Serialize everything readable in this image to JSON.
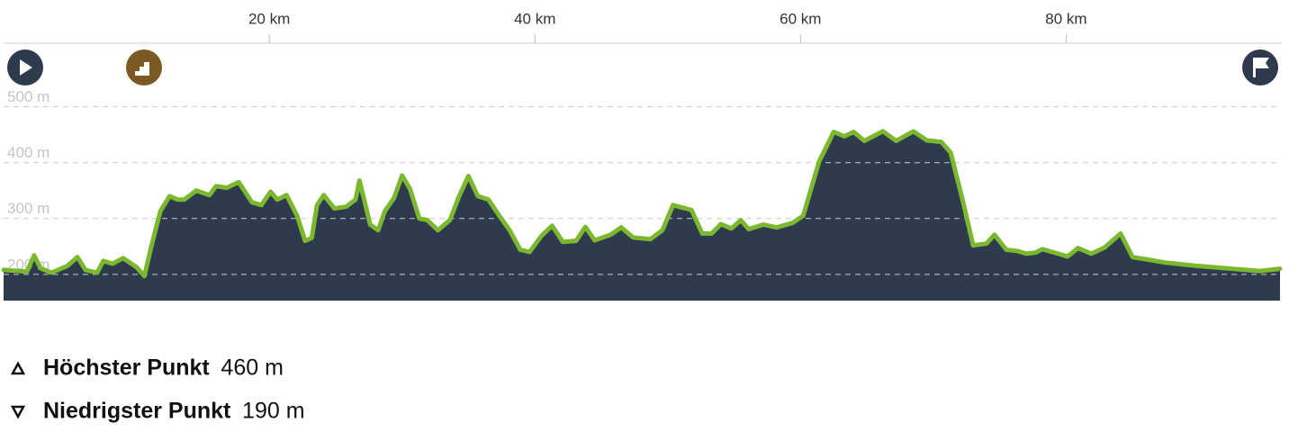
{
  "chart_data": {
    "type": "area",
    "x": [
      0,
      1.76,
      2.3,
      2.78,
      3.6,
      4.8,
      5.56,
      6.17,
      7.05,
      7.5,
      8.2,
      9.0,
      10.0,
      10.6,
      11.1,
      11.8,
      12.5,
      13.1,
      13.6,
      14.5,
      15.5,
      16.0,
      16.8,
      17.7,
      18.7,
      19.4,
      20.1,
      20.6,
      21.3,
      22.1,
      22.7,
      23.2,
      23.6,
      24.1,
      24.9,
      25.8,
      26.5,
      26.8,
      27.6,
      28.2,
      28.7,
      29.4,
      30.0,
      30.6,
      31.3,
      31.9,
      32.7,
      33.6,
      34.3,
      35.0,
      35.7,
      36.5,
      37.4,
      38.1,
      38.9,
      39.6,
      40.5,
      41.3,
      42.1,
      43.1,
      43.8,
      44.5,
      45.7,
      46.5,
      47.4,
      48.7,
      49.6,
      50.4,
      51.8,
      52.6,
      53.3,
      54.0,
      54.8,
      55.5,
      56.1,
      57.2,
      58.2,
      59.4,
      60.2,
      61.4,
      62.5,
      63.3,
      64.0,
      64.8,
      66.2,
      67.2,
      68.5,
      69.5,
      70.6,
      71.3,
      72.2,
      73.0,
      74.0,
      74.6,
      75.5,
      76.3,
      77.0,
      77.7,
      78.2,
      79.4,
      80.1,
      80.9,
      81.9,
      82.9,
      84.1,
      85.0,
      87.5,
      89.9,
      94.6,
      96.1
    ],
    "values": [
      208,
      205,
      234,
      211,
      203,
      215,
      231,
      208,
      203,
      224,
      219,
      229,
      213,
      197,
      248,
      313,
      340,
      334,
      334,
      350,
      342,
      358,
      355,
      365,
      329,
      324,
      348,
      334,
      342,
      305,
      260,
      265,
      324,
      342,
      318,
      321,
      334,
      368,
      289,
      279,
      313,
      337,
      377,
      353,
      300,
      297,
      279,
      297,
      340,
      376,
      340,
      334,
      302,
      279,
      244,
      240,
      269,
      287,
      258,
      260,
      285,
      261,
      271,
      284,
      266,
      263,
      279,
      324,
      315,
      273,
      273,
      290,
      282,
      297,
      281,
      289,
      284,
      292,
      305,
      402,
      455,
      447,
      455,
      439,
      456,
      439,
      456,
      440,
      437,
      418,
      334,
      252,
      255,
      271,
      244,
      242,
      237,
      239,
      245,
      237,
      232,
      247,
      237,
      248,
      273,
      231,
      221,
      215,
      206,
      210
    ],
    "color": "#7cb82f",
    "fill": "#2e3a4d",
    "xlim": [
      0,
      96.1
    ],
    "xticks": [
      {
        "value": 20,
        "label": "20 km"
      },
      {
        "value": 40,
        "label": "40 km"
      },
      {
        "value": 60,
        "label": "60 km"
      },
      {
        "value": 80,
        "label": "80 km"
      }
    ],
    "ylim": [
      153,
      530
    ],
    "yticks": [
      {
        "value": 200,
        "label": "200 m"
      },
      {
        "value": 300,
        "label": "300 m"
      },
      {
        "value": 400,
        "label": "400 m"
      },
      {
        "value": 500,
        "label": "500 m"
      }
    ],
    "grid": true
  },
  "stats": [
    {
      "label": "Höchster Punkt",
      "value": "460 m"
    },
    {
      "label": "Niedrigster Punkt",
      "value": "190 m"
    }
  ]
}
